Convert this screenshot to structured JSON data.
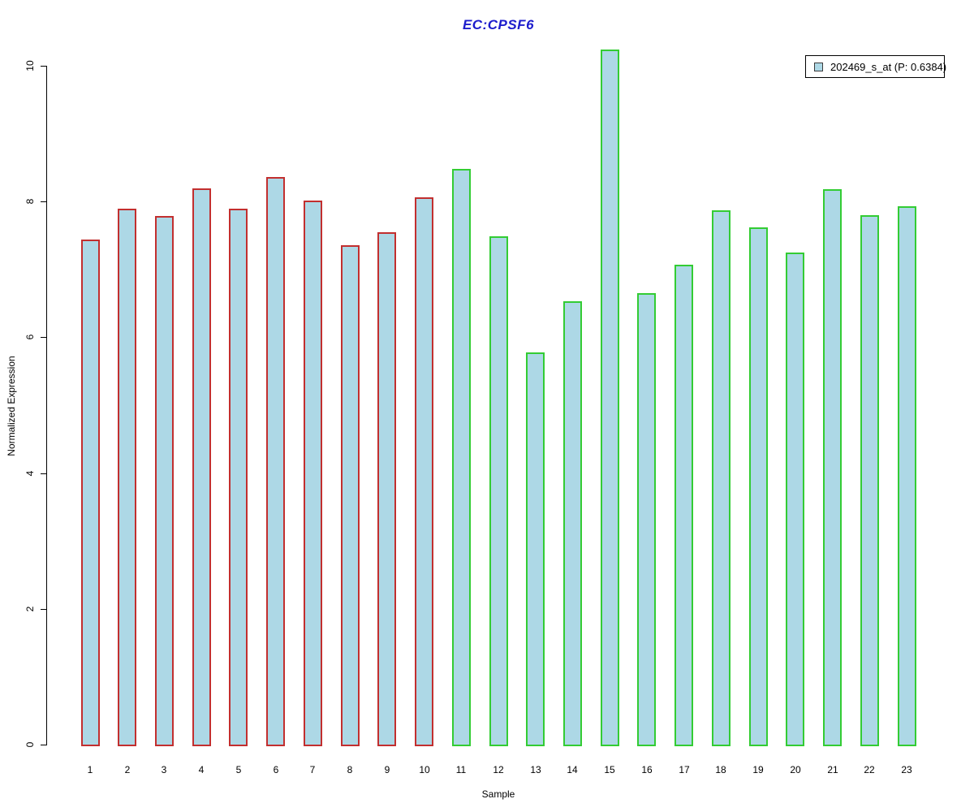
{
  "colors": {
    "title": "#1c1ccc",
    "bar_fill": "#ADD8E6",
    "group1_border": "#c22f2f",
    "group2_border": "#33cc33",
    "axis": "#000000",
    "legend_border": "#000000"
  },
  "chart_data": {
    "type": "bar",
    "title": "EC:CPSF6",
    "xlabel": "Sample",
    "ylabel": "Normalized Expression",
    "ylim": [
      0,
      10.3
    ],
    "yticks": [
      0,
      2,
      4,
      6,
      8,
      10
    ],
    "grid": false,
    "legend_position": "top-right",
    "categories": [
      "1",
      "2",
      "3",
      "4",
      "5",
      "6",
      "7",
      "8",
      "9",
      "10",
      "11",
      "12",
      "13",
      "14",
      "15",
      "16",
      "17",
      "18",
      "19",
      "20",
      "21",
      "22",
      "23"
    ],
    "series": [
      {
        "name": "202469_s_at (P: 0.6384)",
        "fill": "#ADD8E6",
        "values": [
          7.44,
          7.89,
          7.79,
          8.19,
          7.89,
          8.36,
          8.01,
          7.36,
          7.55,
          8.06,
          8.48,
          7.49,
          5.78,
          6.53,
          10.24,
          6.65,
          7.07,
          7.87,
          7.62,
          7.25,
          8.18,
          7.8,
          7.93
        ],
        "border_colors": [
          "#c22f2f",
          "#c22f2f",
          "#c22f2f",
          "#c22f2f",
          "#c22f2f",
          "#c22f2f",
          "#c22f2f",
          "#c22f2f",
          "#c22f2f",
          "#c22f2f",
          "#33cc33",
          "#33cc33",
          "#33cc33",
          "#33cc33",
          "#33cc33",
          "#33cc33",
          "#33cc33",
          "#33cc33",
          "#33cc33",
          "#33cc33",
          "#33cc33",
          "#33cc33",
          "#33cc33"
        ]
      }
    ],
    "groups": [
      {
        "samples": "1-10",
        "border": "#c22f2f"
      },
      {
        "samples": "11-23",
        "border": "#33cc33"
      }
    ]
  }
}
